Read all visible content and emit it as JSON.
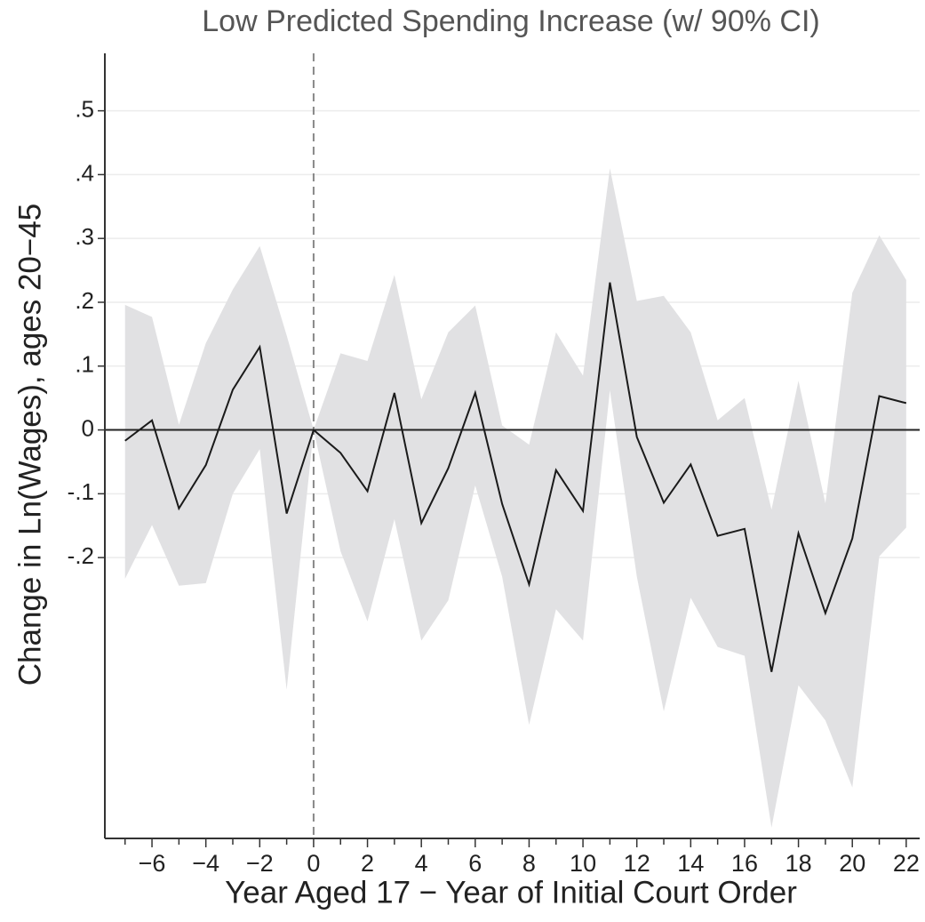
{
  "chart_data": {
    "type": "line",
    "title": "Low Predicted Spending Increase (w/ 90% CI)",
    "x_label": "Year Aged 17 − Year of Initial Court Order",
    "y_label": "Change in Ln(Wages), ages 20−45",
    "x": [
      -7,
      -6,
      -5,
      -4,
      -3,
      -2,
      -1,
      0,
      1,
      2,
      3,
      4,
      5,
      6,
      7,
      8,
      9,
      10,
      11,
      12,
      13,
      14,
      15,
      16,
      17,
      18,
      19,
      20,
      21,
      22
    ],
    "values": [
      -0.017,
      0.015,
      -0.123,
      -0.055,
      0.063,
      0.13,
      -0.131,
      0,
      -0.036,
      -0.096,
      0.058,
      -0.146,
      -0.06,
      0.058,
      -0.116,
      -0.242,
      -0.063,
      -0.127,
      0.231,
      -0.011,
      -0.114,
      -0.054,
      -0.166,
      -0.155,
      -0.379,
      -0.162,
      -0.287,
      -0.17,
      0.053,
      0.042
    ],
    "ci_upper": [
      0.196,
      0.177,
      0.008,
      0.136,
      0.22,
      0.288,
      0.148,
      0,
      0.12,
      0.108,
      0.243,
      0.048,
      0.153,
      0.195,
      0.007,
      -0.023,
      0.153,
      0.085,
      0.41,
      0.202,
      0.21,
      0.153,
      0.015,
      0.05,
      -0.125,
      0.077,
      -0.115,
      0.215,
      0.305,
      0.235
    ],
    "ci_lower": [
      -0.233,
      -0.149,
      -0.244,
      -0.24,
      -0.1,
      -0.03,
      -0.407,
      0,
      -0.19,
      -0.3,
      -0.14,
      -0.33,
      -0.267,
      -0.087,
      -0.23,
      -0.462,
      -0.281,
      -0.33,
      0.062,
      -0.23,
      -0.441,
      -0.263,
      -0.34,
      -0.354,
      -0.623,
      -0.4,
      -0.455,
      -0.56,
      -0.198,
      -0.153
    ],
    "color": "#1a1a1a",
    "band_color": "#e1e1e3",
    "hline": 0,
    "vline": 0,
    "xlim": [
      -7.75,
      22.5
    ],
    "ylim": [
      -0.64,
      0.59
    ],
    "xticks": [
      {
        "value": -6,
        "label": "−6"
      },
      {
        "value": -4,
        "label": "−4"
      },
      {
        "value": -2,
        "label": "−2"
      },
      0,
      2,
      4,
      6,
      8,
      10,
      12,
      14,
      16,
      18,
      20,
      22
    ],
    "xminorticks": [
      -7,
      -5,
      -3,
      -1,
      1,
      3,
      5,
      7,
      9,
      11,
      13,
      15,
      17,
      19,
      21
    ],
    "yticks": [
      {
        "value": 0.5,
        "label": ".5"
      },
      {
        "value": 0.4,
        "label": ".4"
      },
      {
        "value": 0.3,
        "label": ".3"
      },
      {
        "value": 0.2,
        "label": ".2"
      },
      {
        "value": 0.1,
        "label": ".1"
      },
      0,
      {
        "value": -0.1,
        "label": "-.1"
      },
      {
        "value": -0.2,
        "label": "-.2"
      }
    ],
    "grid": true
  }
}
